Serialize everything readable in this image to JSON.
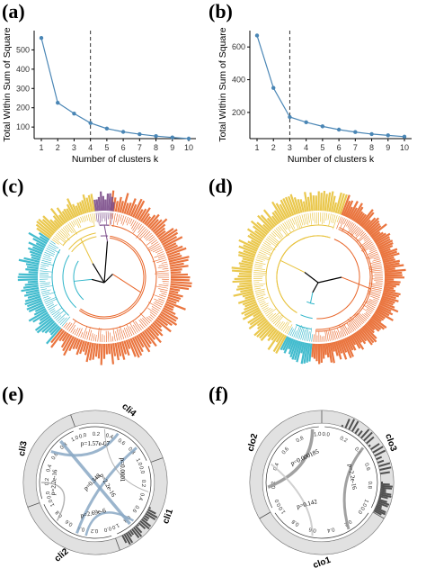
{
  "panels": {
    "a": "(a)",
    "b": "(b)",
    "c": "(c)",
    "d": "(d)",
    "e": "(e)",
    "f": "(f)"
  },
  "colors": {
    "line": "#4a86b5",
    "point": "#4a86b5",
    "yellow": "#e8c23b",
    "orange": "#e8662a",
    "cyan": "#2fb5c9",
    "purple": "#7b4c8a",
    "chord_blue": "#8aa8c4",
    "chord_gray": "#a8a8a8",
    "histogram": "#505050",
    "ring": "#d9d9d9"
  },
  "chart_data": [
    {
      "id": "a",
      "type": "line",
      "x": [
        1,
        2,
        3,
        4,
        5,
        6,
        7,
        8,
        9,
        10
      ],
      "y": [
        562,
        226,
        170,
        121,
        92,
        75,
        63,
        53,
        46,
        40
      ],
      "xlabel": "Number of clusters k",
      "ylabel": "Total Within Sum of Square",
      "xticks": [
        "1",
        "2",
        "3",
        "4",
        "5",
        "6",
        "7",
        "8",
        "9",
        "10"
      ],
      "yticks": [
        100,
        200,
        300,
        400,
        500
      ],
      "ylim": [
        40,
        600
      ],
      "vline": 4,
      "grid": false
    },
    {
      "id": "b",
      "type": "line",
      "x": [
        1,
        2,
        3,
        4,
        5,
        6,
        7,
        8,
        9,
        10
      ],
      "y": [
        670,
        350,
        172,
        140,
        115,
        95,
        80,
        68,
        60,
        52
      ],
      "xlabel": "Number of clusters k",
      "ylabel": "Total Within Sum of Square",
      "xticks": [
        "1",
        "2",
        "3",
        "4",
        "5",
        "6",
        "7",
        "8",
        "9",
        "10"
      ],
      "yticks": [
        200,
        400,
        600
      ],
      "ylim": [
        40,
        700
      ],
      "vline": 3,
      "grid": false
    },
    {
      "id": "e",
      "type": "chord",
      "sectors": [
        "cli1",
        "cli2",
        "cli3",
        "cli4"
      ],
      "ticks": [
        "0.0",
        "0.2",
        "0.4",
        "0.6",
        "0.8",
        "1.0"
      ],
      "links": [
        {
          "p": "p=1.57e-07"
        },
        {
          "p": "p=2.2e-16"
        },
        {
          "p": "p=0.348"
        },
        {
          "p": "p=2.2e-16"
        },
        {
          "p": "p=0.0001"
        },
        {
          "p": "p=2.69e-6"
        }
      ]
    },
    {
      "id": "f",
      "type": "chord",
      "sectors": [
        "clo1",
        "clo2",
        "clo3"
      ],
      "ticks": [
        "0.0",
        "0.2",
        "0.4",
        "0.6",
        "0.8",
        "1.0"
      ],
      "links": [
        {
          "p": "p=0.000185"
        },
        {
          "p": "p=2.2e-16"
        },
        {
          "p": "p=0.142"
        }
      ]
    }
  ]
}
